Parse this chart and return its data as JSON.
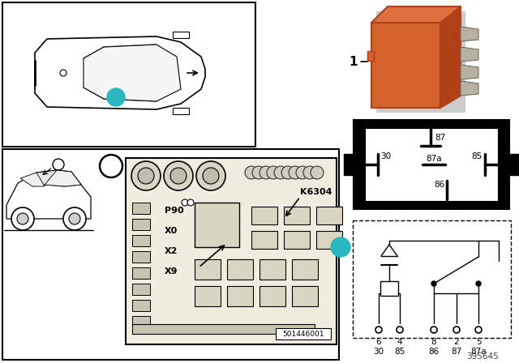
{
  "bg_color": "#ffffff",
  "border_color": "#000000",
  "relay_orange": "#D4622A",
  "relay_orange_light": "#E07040",
  "relay_orange_dark": "#B04018",
  "teal_color": "#29B8C1",
  "gray_car": "#e0e0e0",
  "fuse_bg": "#f0ede0",
  "fuse_dark": "#c8c5b0",
  "fuse_mid": "#d8d5c0",
  "part_number": "395645",
  "fuse_label": "501446001",
  "k6304": "K6304",
  "labels_fuse": [
    "P90",
    "X0",
    "X2",
    "X9"
  ],
  "pin_top": [
    "6",
    "4",
    "8",
    "2",
    "5"
  ],
  "pin_bot": [
    "30",
    "85",
    "86",
    "87",
    "87a"
  ],
  "relay_pin_labels": [
    "87",
    "87a",
    "30",
    "85",
    "86"
  ]
}
